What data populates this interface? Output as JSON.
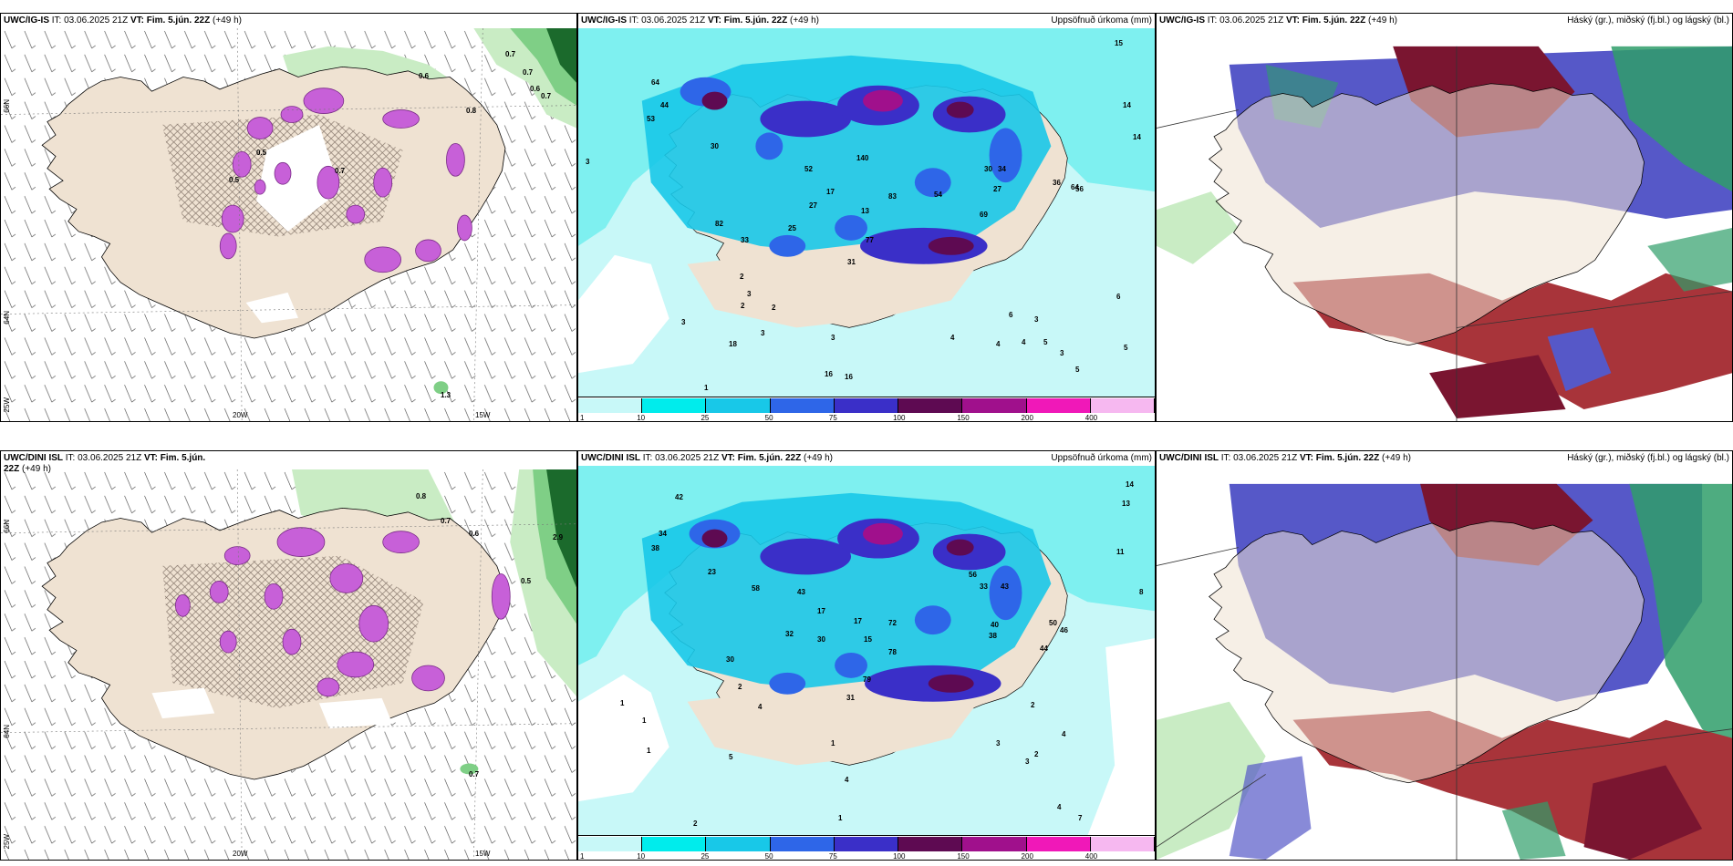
{
  "panels": {
    "top_left": {
      "model": "UWC/IG-IS",
      "it": "IT: 03.06.2025 21Z",
      "vt": "VT: Fim. 5.jún. 22Z",
      "lead": "(+49 h)"
    },
    "top_mid": {
      "model": "UWC/IG-IS",
      "it": "IT: 03.06.2025 21Z",
      "vt": "VT: Fim. 5.jún. 22Z",
      "lead": "(+49 h)",
      "field": "Uppsöfnuð úrkoma (mm)"
    },
    "top_right": {
      "model": "UWC/IG-IS",
      "it": "IT: 03.06.2025 21Z",
      "vt": "VT: Fim. 5.jún. 22Z",
      "lead": "(+49 h)",
      "field": "Háský (gr.), miðský (fj.bl.) og lágský (bl.)"
    },
    "bot_left": {
      "model": "UWC/DINI ISL",
      "it": "IT: 03.06.2025 21Z",
      "vt": "VT: Fim. 5.jún. 22Z",
      "lead": "(+49 h)"
    },
    "bot_mid": {
      "model": "UWC/DINI ISL",
      "it": "IT: 03.06.2025 21Z",
      "vt": "VT: Fim. 5.jún. 22Z",
      "lead": "(+49 h)",
      "field": "Uppsöfnuð úrkoma (mm)"
    },
    "bot_right": {
      "model": "UWC/DINI ISL",
      "it": "IT: 03.06.2025 21Z",
      "vt": "VT: Fim. 5.jún. 22Z",
      "lead": "(+49 h)",
      "field": "Háský (gr.), miðský (fj.bl.) og lágský (bl.)"
    }
  },
  "grid_labels": {
    "lat_66": "66N",
    "lat_64": "64N",
    "lat_25w": "25W",
    "lon_20w": "20W",
    "lon_15w": "15W"
  },
  "precip_legend": {
    "ticks": [
      "1",
      "10",
      "25",
      "50",
      "75",
      "100",
      "150",
      "200",
      "400"
    ],
    "colors": [
      "#c8f8f8",
      "#00ecec",
      "#18c8e8",
      "#2e66e8",
      "#3a2fc8",
      "#5e0a52",
      "#a0108c",
      "#f018b8",
      "#f6b8f0"
    ]
  },
  "top_left_values": [
    "0.7",
    "0.7",
    "0.6",
    "0.7",
    "0.6",
    "0.8",
    "0.5",
    "0.7",
    "0.5",
    "1.3"
  ],
  "bot_left_values": [
    "0.8",
    "0.7",
    "0.6",
    "2.9",
    "0.5",
    "0.7"
  ],
  "top_mid_values": [
    "15",
    "14",
    "14",
    "3",
    "30",
    "64",
    "53",
    "52",
    "44",
    "82",
    "33",
    "27",
    "25",
    "17",
    "13",
    "83",
    "140",
    "54",
    "34",
    "30",
    "27",
    "69",
    "56",
    "64",
    "77",
    "36",
    "31",
    "2",
    "3",
    "2",
    "2",
    "3",
    "3",
    "3",
    "18",
    "1",
    "16",
    "16",
    "4",
    "6",
    "3",
    "4",
    "4",
    "5",
    "6",
    "5",
    "5",
    "3"
  ],
  "bot_mid_values": [
    "14",
    "13",
    "11",
    "8",
    "42",
    "34",
    "38",
    "23",
    "30",
    "43",
    "58",
    "17",
    "17",
    "72",
    "33",
    "43",
    "56",
    "32",
    "15",
    "78",
    "40",
    "38",
    "50",
    "46",
    "44",
    "30",
    "79",
    "31",
    "4",
    "2",
    "1",
    "1",
    "1",
    "1",
    "5",
    "4",
    "3",
    "2",
    "3",
    "2",
    "4",
    "7",
    "1",
    "4",
    "2"
  ],
  "colors": {
    "land": "#efe2d2",
    "coast": "#000000",
    "wet": "#c760d8",
    "wet_dark": "#7a2c88",
    "green_light": "#c9ecc4",
    "green_mid": "#7fcf86",
    "green_dark": "#1b6a2c",
    "cloud_high": "#2f9e6a",
    "cloud_mid": "#5658c8",
    "cloud_low": "#a8343a",
    "cloud_low_dark": "#7a1530"
  }
}
